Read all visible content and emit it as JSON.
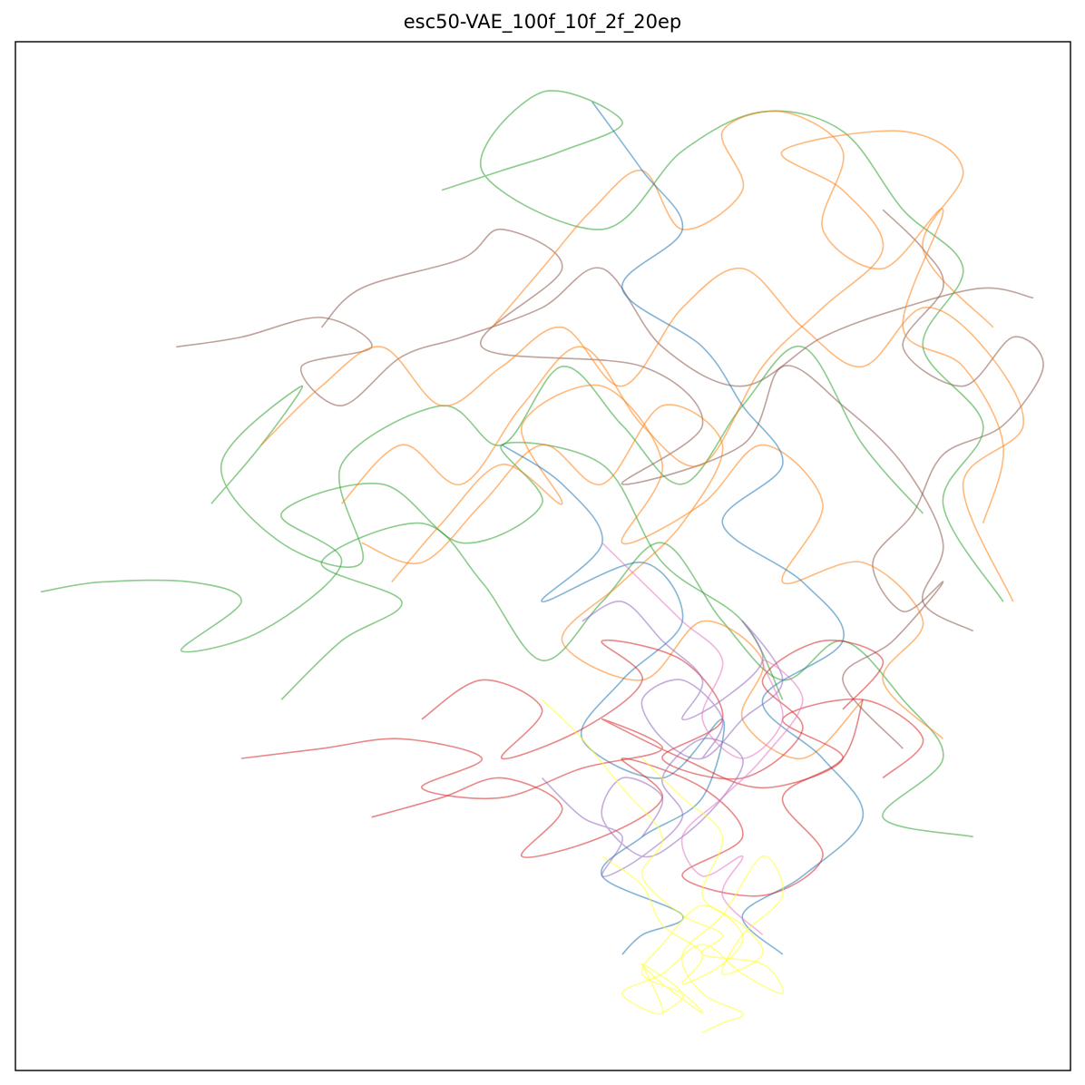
{
  "chart_data": {
    "type": "line",
    "title": "esc50-VAE_100f_10f_2f_20ep",
    "xlabel": "",
    "ylabel": "",
    "xlim": [
      0,
      1
    ],
    "ylim": [
      0,
      1
    ],
    "grid": false,
    "legend": "none",
    "axis_ticks": false,
    "colors": [
      "#1f77b4",
      "#ff7f0e",
      "#2ca02c",
      "#d62728",
      "#9467bd",
      "#8c564b",
      "#e377c2",
      "#ffff33"
    ],
    "series": [
      {
        "color_index": 5,
        "x": [
          0.135,
          0.2,
          0.28,
          0.33,
          0.26,
          0.3,
          0.36,
          0.42,
          0.5,
          0.56,
          0.62,
          0.7,
          0.78,
          0.86,
          0.94,
          0.99
        ],
        "y": [
          0.72,
          0.73,
          0.75,
          0.72,
          0.7,
          0.66,
          0.71,
          0.73,
          0.76,
          0.8,
          0.72,
          0.68,
          0.73,
          0.76,
          0.78,
          0.77
        ]
      },
      {
        "color_index": 5,
        "x": [
          0.28,
          0.32,
          0.42,
          0.46,
          0.52,
          0.44,
          0.6,
          0.66,
          0.58,
          0.7,
          0.74,
          0.8,
          0.86,
          0.9,
          0.88,
          0.93
        ],
        "y": [
          0.74,
          0.78,
          0.81,
          0.84,
          0.8,
          0.72,
          0.7,
          0.64,
          0.58,
          0.62,
          0.7,
          0.66,
          0.6,
          0.52,
          0.46,
          0.43
        ]
      },
      {
        "color_index": 5,
        "x": [
          0.84,
          0.88,
          0.9,
          0.86,
          0.92,
          0.97,
          1.0,
          0.96,
          0.9,
          0.87,
          0.83,
          0.86,
          0.9,
          0.85,
          0.8,
          0.86
        ],
        "y": [
          0.86,
          0.82,
          0.78,
          0.72,
          0.68,
          0.73,
          0.7,
          0.64,
          0.61,
          0.55,
          0.5,
          0.45,
          0.48,
          0.42,
          0.38,
          0.31
        ]
      },
      {
        "color_index": 2,
        "x": [
          0.0,
          0.06,
          0.15,
          0.2,
          0.14,
          0.22,
          0.3,
          0.24,
          0.34,
          0.42,
          0.5,
          0.46,
          0.56,
          0.62,
          0.7,
          0.74
        ],
        "y": [
          0.47,
          0.48,
          0.48,
          0.46,
          0.41,
          0.43,
          0.5,
          0.55,
          0.58,
          0.52,
          0.56,
          0.62,
          0.6,
          0.5,
          0.44,
          0.36
        ]
      },
      {
        "color_index": 2,
        "x": [
          0.17,
          0.22,
          0.26,
          0.18,
          0.24,
          0.32,
          0.3,
          0.4,
          0.46,
          0.52,
          0.58,
          0.64,
          0.7,
          0.76,
          0.82,
          0.88
        ],
        "y": [
          0.56,
          0.62,
          0.68,
          0.6,
          0.52,
          0.5,
          0.6,
          0.66,
          0.62,
          0.7,
          0.64,
          0.58,
          0.66,
          0.72,
          0.62,
          0.55
        ]
      },
      {
        "color_index": 2,
        "x": [
          0.4,
          0.46,
          0.52,
          0.58,
          0.5,
          0.44,
          0.56,
          0.64,
          0.72,
          0.8,
          0.86,
          0.92,
          0.88,
          0.94,
          0.9,
          0.96
        ],
        "y": [
          0.88,
          0.9,
          0.92,
          0.95,
          0.98,
          0.9,
          0.84,
          0.92,
          0.96,
          0.94,
          0.86,
          0.8,
          0.72,
          0.64,
          0.56,
          0.46
        ]
      },
      {
        "color_index": 2,
        "x": [
          0.24,
          0.3,
          0.36,
          0.28,
          0.38,
          0.44,
          0.5,
          0.56,
          0.62,
          0.68,
          0.74,
          0.8,
          0.86,
          0.9,
          0.84,
          0.93
        ],
        "y": [
          0.36,
          0.42,
          0.46,
          0.5,
          0.54,
          0.48,
          0.4,
          0.46,
          0.52,
          0.44,
          0.38,
          0.42,
          0.36,
          0.3,
          0.24,
          0.22
        ]
      },
      {
        "color_index": 1,
        "x": [
          0.22,
          0.28,
          0.34,
          0.4,
          0.46,
          0.52,
          0.58,
          0.64,
          0.7,
          0.76,
          0.82,
          0.88,
          0.94,
          0.98,
          0.92,
          0.97
        ],
        "y": [
          0.62,
          0.68,
          0.72,
          0.66,
          0.7,
          0.74,
          0.68,
          0.76,
          0.8,
          0.74,
          0.7,
          0.76,
          0.72,
          0.64,
          0.58,
          0.46
        ]
      },
      {
        "color_index": 1,
        "x": [
          0.3,
          0.36,
          0.42,
          0.48,
          0.54,
          0.6,
          0.66,
          0.72,
          0.78,
          0.84,
          0.8,
          0.74,
          0.86,
          0.92,
          0.88,
          0.95
        ],
        "y": [
          0.56,
          0.62,
          0.58,
          0.66,
          0.72,
          0.64,
          0.6,
          0.7,
          0.76,
          0.82,
          0.88,
          0.92,
          0.94,
          0.9,
          0.82,
          0.74
        ]
      },
      {
        "color_index": 1,
        "x": [
          0.35,
          0.4,
          0.46,
          0.52,
          0.48,
          0.56,
          0.62,
          0.58,
          0.66,
          0.72,
          0.78,
          0.74,
          0.82,
          0.88,
          0.84,
          0.9
        ],
        "y": [
          0.48,
          0.54,
          0.6,
          0.56,
          0.64,
          0.68,
          0.6,
          0.52,
          0.56,
          0.62,
          0.56,
          0.48,
          0.5,
          0.44,
          0.38,
          0.32
        ]
      },
      {
        "color_index": 1,
        "x": [
          0.45,
          0.5,
          0.55,
          0.6,
          0.64,
          0.7,
          0.68,
          0.74,
          0.8,
          0.78,
          0.84,
          0.9,
          0.86,
          0.92,
          0.96,
          0.94
        ],
        "y": [
          0.74,
          0.8,
          0.86,
          0.9,
          0.84,
          0.88,
          0.94,
          0.96,
          0.92,
          0.84,
          0.8,
          0.86,
          0.74,
          0.7,
          0.62,
          0.54
        ]
      },
      {
        "color_index": 1,
        "x": [
          0.32,
          0.38,
          0.44,
          0.5,
          0.56,
          0.62,
          0.68,
          0.64,
          0.58,
          0.52,
          0.6,
          0.66,
          0.72,
          0.7,
          0.76,
          0.82
        ],
        "y": [
          0.52,
          0.5,
          0.56,
          0.62,
          0.58,
          0.66,
          0.62,
          0.54,
          0.48,
          0.42,
          0.38,
          0.44,
          0.4,
          0.34,
          0.3,
          0.36
        ]
      },
      {
        "color_index": 0,
        "x": [
          0.55,
          0.6,
          0.64,
          0.58,
          0.66,
          0.7,
          0.74,
          0.68,
          0.76,
          0.8,
          0.72,
          0.78,
          0.82,
          0.76,
          0.7,
          0.74
        ],
        "y": [
          0.97,
          0.9,
          0.84,
          0.78,
          0.72,
          0.66,
          0.6,
          0.54,
          0.48,
          0.42,
          0.36,
          0.3,
          0.24,
          0.18,
          0.14,
          0.1
        ]
      },
      {
        "color_index": 0,
        "x": [
          0.46,
          0.52,
          0.56,
          0.5,
          0.6,
          0.64,
          0.58,
          0.54,
          0.62,
          0.68,
          0.66,
          0.6,
          0.56,
          0.64,
          0.6,
          0.58
        ],
        "y": [
          0.62,
          0.58,
          0.52,
          0.46,
          0.5,
          0.44,
          0.38,
          0.32,
          0.28,
          0.34,
          0.26,
          0.22,
          0.18,
          0.14,
          0.12,
          0.1
        ]
      },
      {
        "color_index": 3,
        "x": [
          0.2,
          0.28,
          0.36,
          0.44,
          0.38,
          0.46,
          0.54,
          0.62,
          0.56,
          0.64,
          0.72,
          0.8,
          0.74,
          0.82,
          0.88,
          0.84
        ],
        "y": [
          0.3,
          0.31,
          0.32,
          0.3,
          0.27,
          0.26,
          0.29,
          0.31,
          0.34,
          0.3,
          0.27,
          0.3,
          0.34,
          0.36,
          0.32,
          0.28
        ]
      },
      {
        "color_index": 3,
        "x": [
          0.33,
          0.4,
          0.46,
          0.52,
          0.48,
          0.56,
          0.62,
          0.58,
          0.66,
          0.7,
          0.64,
          0.72,
          0.78,
          0.74,
          0.8,
          0.82
        ],
        "y": [
          0.24,
          0.26,
          0.28,
          0.25,
          0.2,
          0.22,
          0.26,
          0.3,
          0.27,
          0.22,
          0.18,
          0.16,
          0.2,
          0.26,
          0.3,
          0.36
        ]
      },
      {
        "color_index": 3,
        "x": [
          0.38,
          0.44,
          0.5,
          0.46,
          0.54,
          0.6,
          0.56,
          0.64,
          0.68,
          0.62,
          0.7,
          0.76,
          0.72,
          0.78,
          0.84,
          0.8
        ],
        "y": [
          0.34,
          0.38,
          0.35,
          0.3,
          0.33,
          0.38,
          0.42,
          0.4,
          0.34,
          0.3,
          0.28,
          0.33,
          0.38,
          0.42,
          0.4,
          0.35
        ]
      },
      {
        "color_index": 4,
        "x": [
          0.5,
          0.54,
          0.58,
          0.56,
          0.6,
          0.64,
          0.62,
          0.66,
          0.7,
          0.68,
          0.64,
          0.6,
          0.56,
          0.58,
          0.62,
          0.6
        ],
        "y": [
          0.28,
          0.24,
          0.22,
          0.18,
          0.2,
          0.24,
          0.28,
          0.32,
          0.3,
          0.26,
          0.22,
          0.2,
          0.24,
          0.28,
          0.26,
          0.22
        ]
      },
      {
        "color_index": 4,
        "x": [
          0.54,
          0.58,
          0.62,
          0.66,
          0.64,
          0.68,
          0.72,
          0.7,
          0.74,
          0.7,
          0.66,
          0.62,
          0.6,
          0.64,
          0.68,
          0.66
        ],
        "y": [
          0.44,
          0.46,
          0.42,
          0.38,
          0.34,
          0.36,
          0.4,
          0.44,
          0.38,
          0.34,
          0.3,
          0.32,
          0.36,
          0.38,
          0.34,
          0.3
        ]
      },
      {
        "color_index": 6,
        "x": [
          0.56,
          0.6,
          0.64,
          0.68,
          0.66,
          0.7,
          0.74,
          0.72,
          0.76,
          0.72,
          0.68,
          0.64,
          0.66,
          0.7,
          0.68,
          0.72
        ],
        "y": [
          0.52,
          0.48,
          0.44,
          0.4,
          0.34,
          0.3,
          0.34,
          0.4,
          0.36,
          0.3,
          0.26,
          0.22,
          0.18,
          0.2,
          0.16,
          0.12
        ]
      },
      {
        "color_index": 7,
        "x": [
          0.56,
          0.6,
          0.62,
          0.66,
          0.64,
          0.68,
          0.7,
          0.66,
          0.62,
          0.6,
          0.64,
          0.66,
          0.62,
          0.6,
          0.64,
          0.62
        ],
        "y": [
          0.2,
          0.17,
          0.13,
          0.1,
          0.07,
          0.09,
          0.12,
          0.15,
          0.11,
          0.08,
          0.06,
          0.04,
          0.07,
          0.09,
          0.06,
          0.04
        ]
      },
      {
        "color_index": 7,
        "x": [
          0.6,
          0.64,
          0.68,
          0.66,
          0.7,
          0.72,
          0.68,
          0.7,
          0.74,
          0.72,
          0.68,
          0.64,
          0.66,
          0.7,
          0.68,
          0.66
        ],
        "y": [
          0.3,
          0.26,
          0.22,
          0.16,
          0.13,
          0.1,
          0.08,
          0.12,
          0.16,
          0.2,
          0.14,
          0.1,
          0.06,
          0.04,
          0.03,
          0.02
        ]
      },
      {
        "color_index": 7,
        "x": [
          0.5,
          0.54,
          0.58,
          0.62,
          0.6,
          0.64,
          0.68,
          0.66,
          0.72,
          0.74,
          0.7,
          0.66,
          0.62,
          0.58,
          0.62,
          0.6
        ],
        "y": [
          0.36,
          0.32,
          0.27,
          0.22,
          0.18,
          0.14,
          0.12,
          0.1,
          0.09,
          0.06,
          0.08,
          0.11,
          0.08,
          0.06,
          0.04,
          0.09
        ]
      }
    ]
  }
}
